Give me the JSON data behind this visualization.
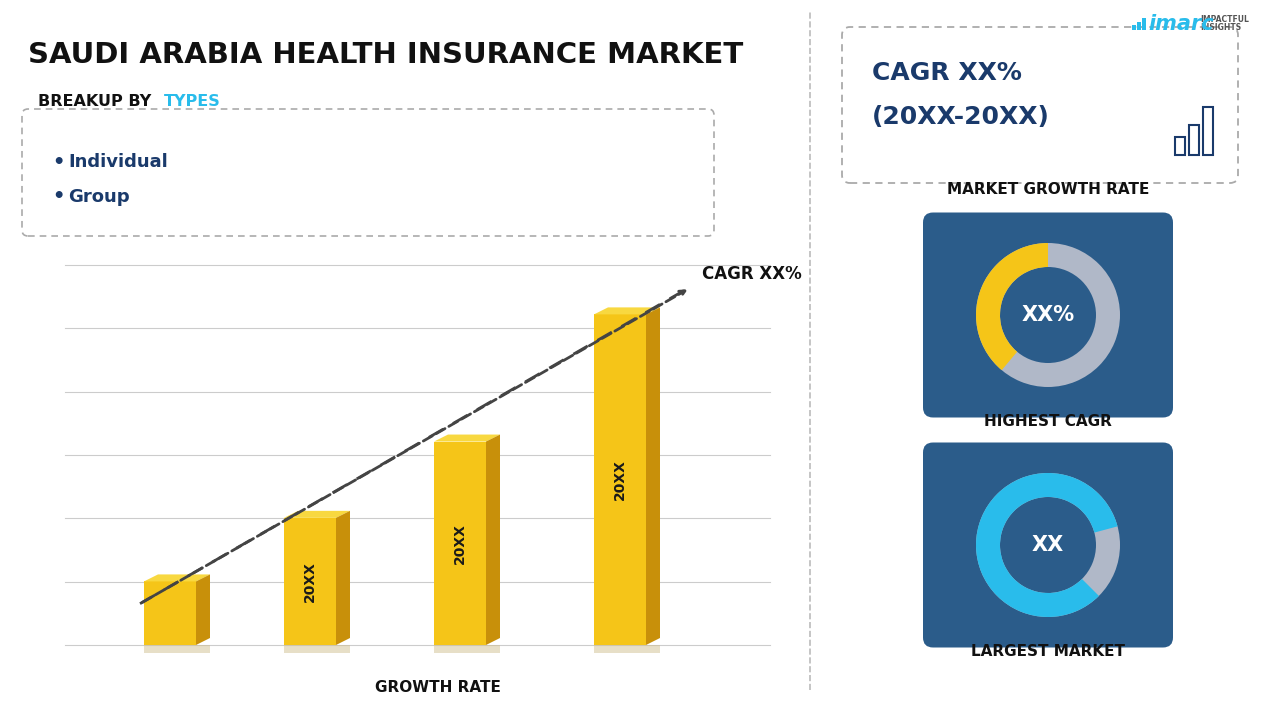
{
  "title": "SAUDI ARABIA HEALTH INSURANCE MARKET",
  "bg_color": "#ffffff",
  "breakup_label": "BREAKUP BY ",
  "breakup_highlight": "TYPES",
  "legend_items": [
    "Individual",
    "Group"
  ],
  "bar_values": [
    1.0,
    2.0,
    3.2,
    5.2
  ],
  "bar_labels": [
    "",
    "20XX",
    "20XX",
    "20XX"
  ],
  "bar_color": "#F5C518",
  "bar_top_color": "#F8D840",
  "bar_side_color": "#C8900A",
  "dashed_line_color": "#444444",
  "cagr_label": "CAGR XX%",
  "x_axis_label": "GROWTH RATE",
  "grid_color": "#cccccc",
  "right_cagr_text1": "CAGR XX%",
  "right_cagr_text2": "(20XX-20XX)",
  "market_growth_label": "MARKET GROWTH RATE",
  "highest_cagr_label": "HIGHEST CAGR",
  "largest_market_label": "LARGEST MARKET",
  "donut1_text": "XX%",
  "donut2_text": "XX",
  "donut1_color_main": "#F5C518",
  "donut1_color_secondary": "#b0b8c8",
  "donut2_color_main": "#29BCEB",
  "donut2_color_secondary": "#b0b8c8",
  "card_bg": "#2B5C8A",
  "divider_color": "#bbbbbb",
  "imarc_blue": "#29BCEB",
  "dark_blue_text": "#1a3a6b",
  "label_text_color": "#1a1a1a",
  "bullet_color": "#1a3a6b",
  "types_color": "#29BCEB"
}
